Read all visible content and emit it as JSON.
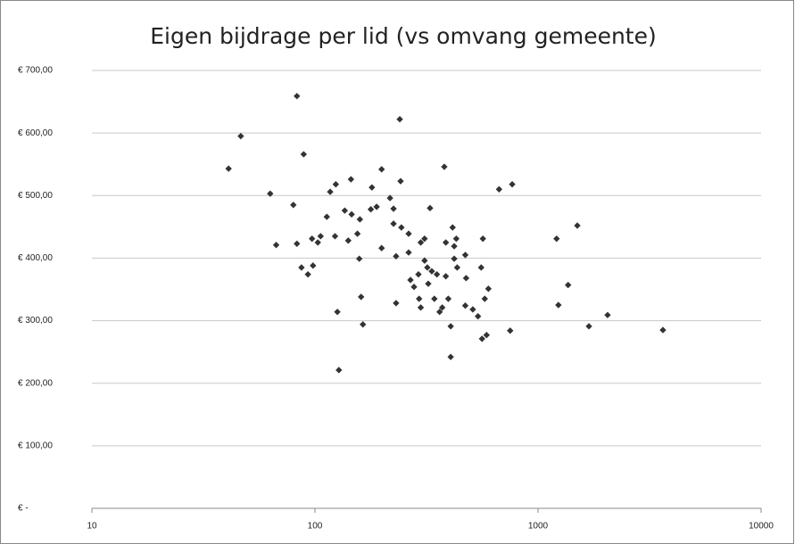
{
  "chart_data": {
    "type": "scatter",
    "title": "Eigen bijdrage per lid (vs omvang gemeente)",
    "x": [
      41,
      46.5,
      83,
      89,
      63,
      80,
      67,
      83,
      87,
      93,
      98,
      97,
      103,
      106,
      113,
      117,
      124,
      123,
      126,
      128,
      136,
      145,
      146,
      141,
      159,
      155,
      158,
      161,
      164,
      180,
      178,
      189,
      199,
      199,
      217,
      225,
      225,
      231,
      231,
      242,
      240,
      244,
      263,
      263,
      268,
      278,
      291,
      293,
      298,
      298,
      310,
      310,
      319,
      322,
      328,
      334,
      343,
      352,
      362,
      372,
      380,
      386,
      386,
      396,
      406,
      406,
      414,
      421,
      421,
      434,
      430,
      472,
      476,
      472,
      510,
      538,
      561,
      588,
      556,
      566,
      577,
      599,
      669,
      766,
      750,
      1211,
      1234,
      1364,
      1500,
      1691,
      2050,
      3630
    ],
    "values": [
      543,
      595,
      659,
      566,
      503,
      485,
      421,
      423,
      385,
      374,
      388,
      431,
      425,
      435,
      466,
      506,
      518,
      435,
      314,
      221,
      476,
      526,
      470,
      428,
      462,
      439,
      399,
      338,
      294,
      513,
      478,
      482,
      542,
      416,
      496,
      479,
      455,
      403,
      328,
      523,
      622,
      449,
      439,
      409,
      365,
      354,
      374,
      335,
      321,
      425,
      431,
      396,
      385,
      359,
      480,
      379,
      335,
      374,
      314,
      321,
      546,
      425,
      371,
      335,
      291,
      242,
      449,
      399,
      419,
      385,
      431,
      405,
      368,
      324,
      318,
      307,
      271,
      277,
      385,
      431,
      335,
      351,
      510,
      518,
      284,
      431,
      325,
      357,
      452,
      291,
      309,
      285
    ],
    "color": "#333333",
    "xscale": "log",
    "xlim": [
      10,
      10000
    ],
    "xticks": [
      10,
      100,
      1000,
      10000
    ],
    "ylim": [
      0,
      700
    ],
    "yticks": [
      {
        "value": 0,
        "label": "€ -"
      },
      {
        "value": 100,
        "label": "€ 100,00"
      },
      {
        "value": 200,
        "label": "€ 200,00"
      },
      {
        "value": 300,
        "label": "€ 300,00"
      },
      {
        "value": 400,
        "label": "€ 400,00"
      },
      {
        "value": 500,
        "label": "€ 500,00"
      },
      {
        "value": 600,
        "label": "€ 600,00"
      },
      {
        "value": 700,
        "label": "€ 700,00"
      }
    ],
    "grid": true
  }
}
